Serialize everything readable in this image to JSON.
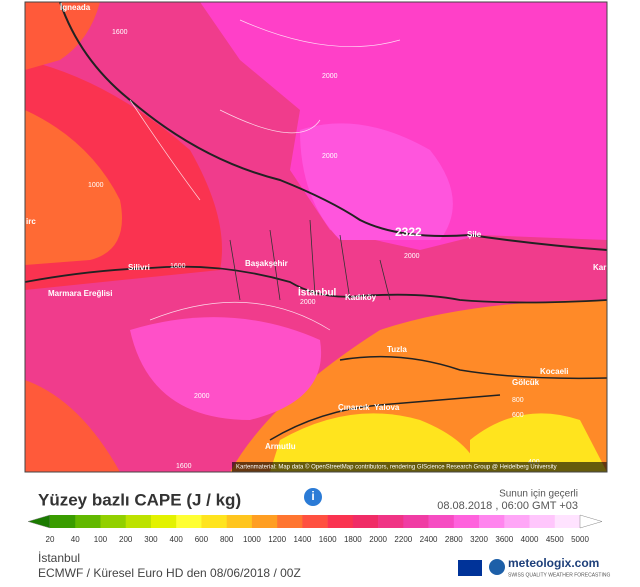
{
  "map": {
    "places": [
      "İgneada",
      "Silivri",
      "Başakşehir",
      "İstanbul",
      "Kadıköy",
      "Şile",
      "Marmara Ereğlisi",
      "Tuzla",
      "Kocaeli",
      "Gölcük",
      "Çınarcık",
      "Yalova",
      "Armutlu",
      "Kar",
      "irc"
    ],
    "contours": [
      "1600",
      "2000",
      "2000",
      "1000",
      "1600",
      "2000",
      "2000",
      "2000",
      "1600",
      "800",
      "600",
      "400"
    ],
    "max_value": "2322",
    "attribution": "Kartenmaterial: Map data © OpenStreetMap contributors, rendering GIScience Research Group @ Heidelberg University"
  },
  "header": {
    "title": "Yüzey bazlı CAPE (J / kg)",
    "valid_label": "Sunun için geçerli",
    "valid_time": "08.08.2018 , 06:00 GMT +03"
  },
  "legend": {
    "labels": [
      20,
      40,
      100,
      200,
      300,
      400,
      600,
      800,
      1000,
      1200,
      1400,
      1600,
      1800,
      2000,
      2200,
      2400,
      2800,
      3200,
      3600,
      4000,
      4500,
      5000
    ],
    "colors": [
      "#1a7a00",
      "#3a9c00",
      "#62b800",
      "#92d000",
      "#bde200",
      "#e3f200",
      "#ffff33",
      "#ffe41e",
      "#ffc51e",
      "#ff9e22",
      "#ff7530",
      "#ff5040",
      "#fa3350",
      "#f02c66",
      "#f03485",
      "#f03ca4",
      "#f64cc2",
      "#ff62dd",
      "#ff85ee",
      "#ffa6f7",
      "#ffc6fc",
      "#ffe3ff",
      "#ffffff"
    ]
  },
  "footer": {
    "location": "İstanbul",
    "source": "ECMWF / Küresel Euro HD den 08/06/2018 / 00Z",
    "brand": "meteologix.com",
    "tagline": "SWISS QUALITY WEATHER FORECASTING"
  }
}
